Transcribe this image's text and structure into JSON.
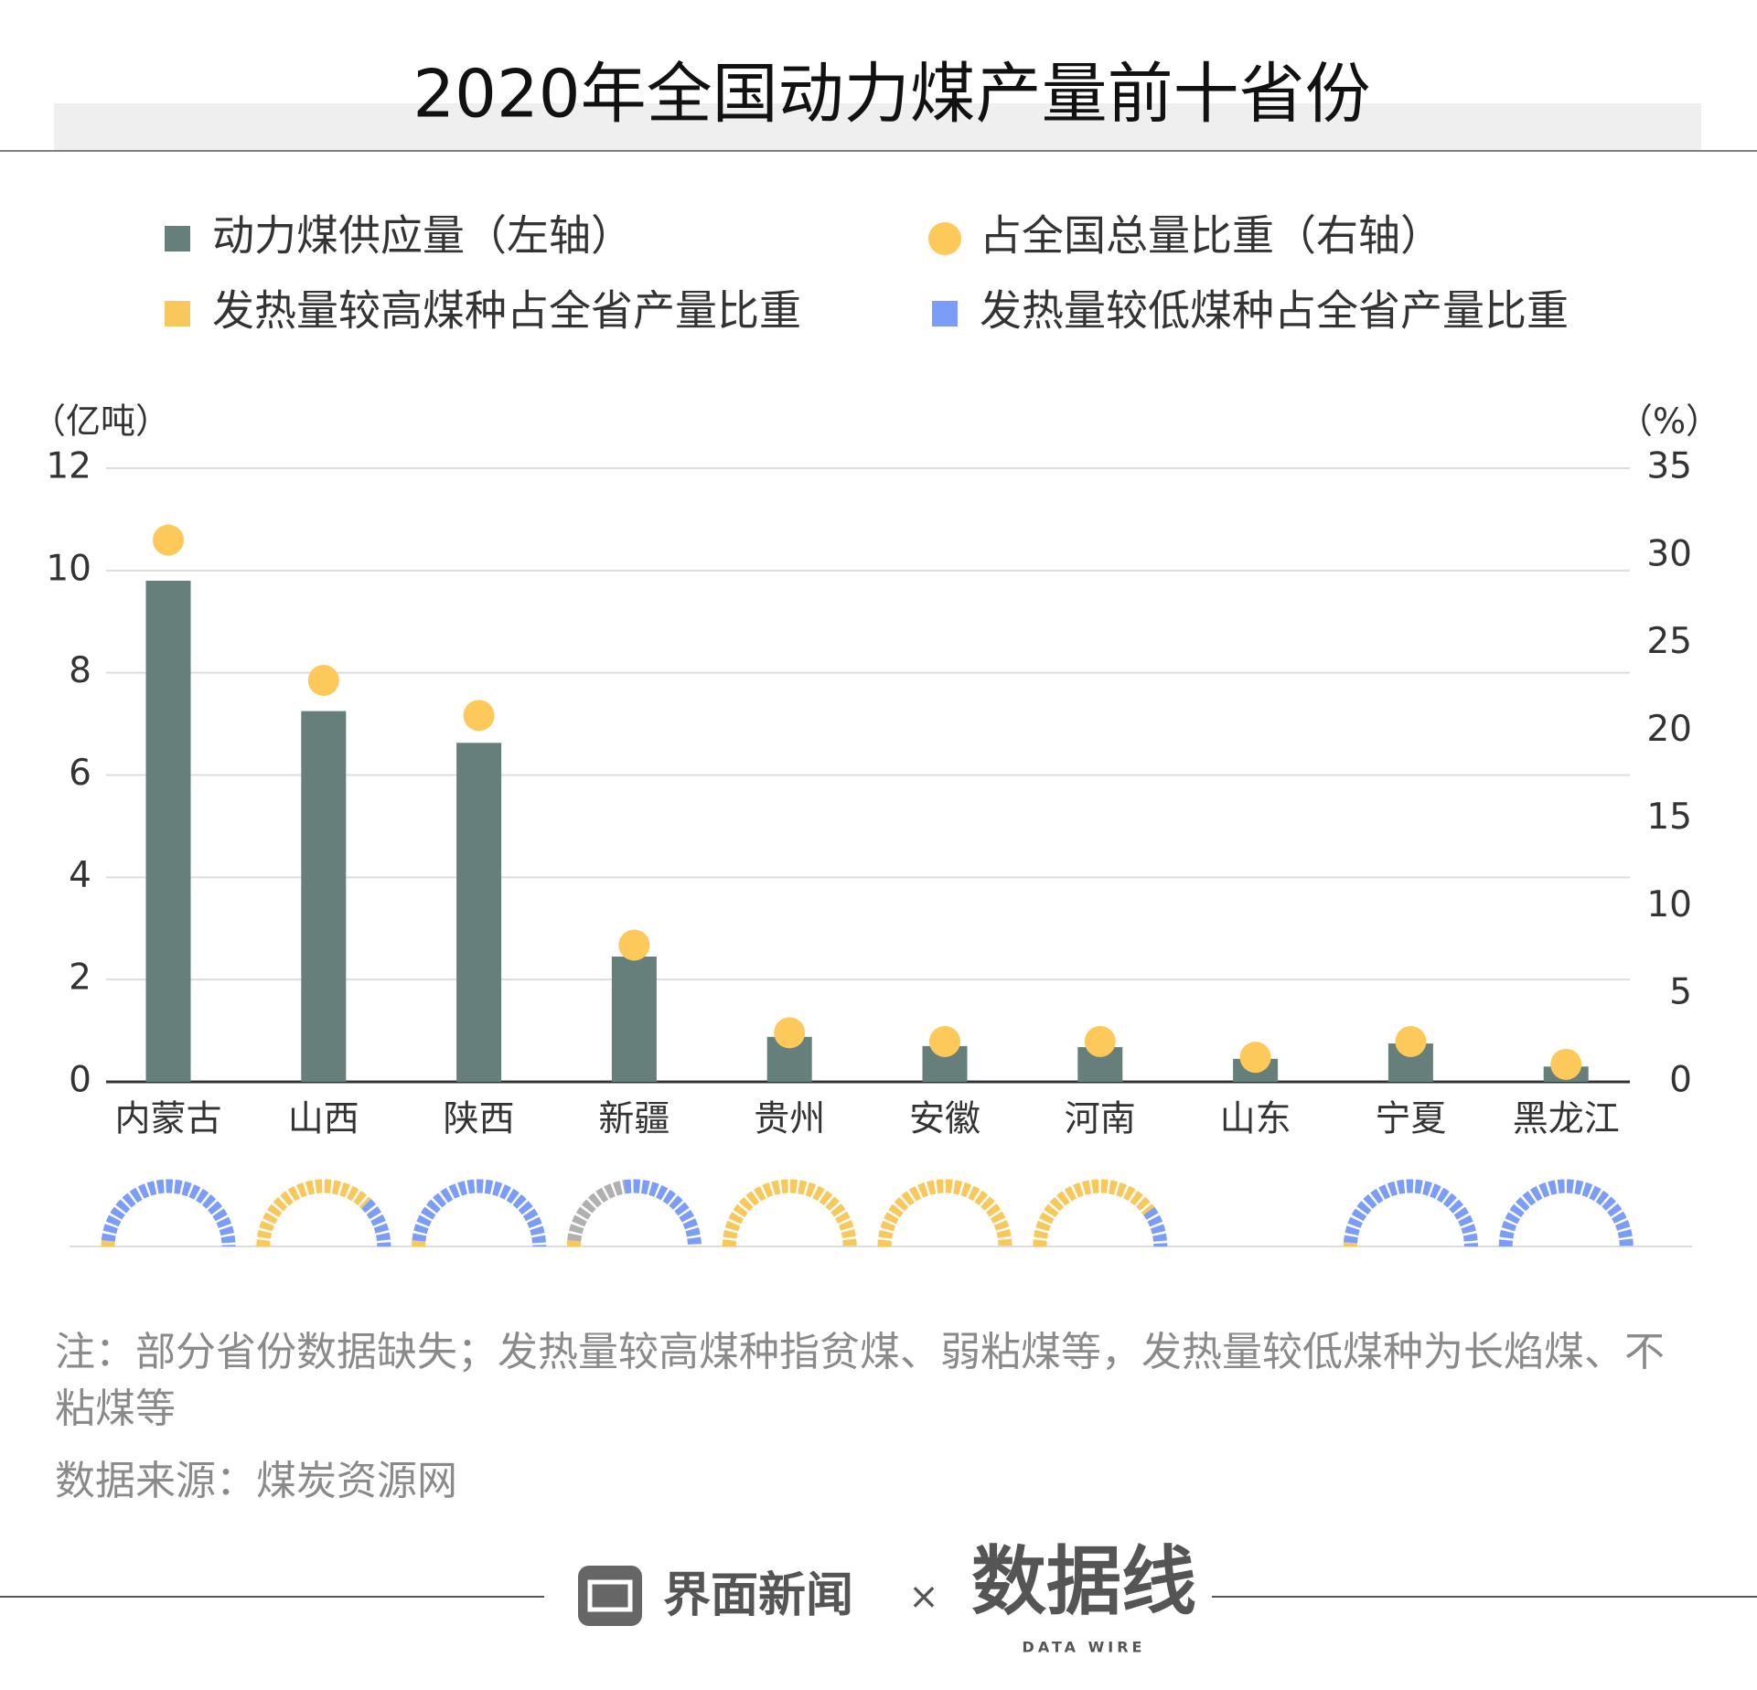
{
  "chart_data": [
    {
      "type": "bar",
      "title": "2020年全国动力煤产量前十省份",
      "categories": [
        "内蒙古",
        "山西",
        "陕西",
        "新疆",
        "贵州",
        "安徽",
        "河南",
        "山东",
        "宁夏",
        "黑龙江"
      ],
      "series": [
        {
          "name": "动力煤供应量（左轴）",
          "color": "#667f7a",
          "values": [
            9.8,
            7.25,
            6.63,
            2.45,
            0.88,
            0.7,
            0.68,
            0.45,
            0.75,
            0.3
          ]
        },
        {
          "name": "占全国总量比重（右轴）",
          "color": "#fcc95a",
          "type": "scatter",
          "axis": "y2",
          "values": [
            30.9,
            22.9,
            20.9,
            7.8,
            2.8,
            2.3,
            2.3,
            1.4,
            2.3,
            1.0
          ]
        }
      ],
      "ylabel": "（亿吨）",
      "y2label": "（%）",
      "ylim": [
        0,
        12
      ],
      "yticks": [
        0,
        2,
        4,
        6,
        8,
        10,
        12
      ],
      "y2lim": [
        0,
        35
      ],
      "y2ticks": [
        0,
        5,
        10,
        15,
        20,
        25,
        30,
        35
      ],
      "grid": true
    },
    {
      "type": "semi-donut",
      "categories": [
        "内蒙古",
        "山西",
        "陕西",
        "新疆",
        "贵州",
        "安徽",
        "河南",
        "山东",
        "宁夏",
        "黑龙江"
      ],
      "series": [
        {
          "name": "发热量较高煤种占全省产量比重",
          "color": "#f9c85c",
          "values": [
            3,
            75,
            3,
            3,
            100,
            100,
            80,
            null,
            2,
            0
          ]
        },
        {
          "color": "#b0b0b0",
          "values": [
            0,
            0,
            0,
            42,
            0,
            0,
            0,
            null,
            0,
            0
          ]
        },
        {
          "name": "发热量较低煤种占全省产量比重",
          "color": "#7b9cf7",
          "values": [
            97,
            25,
            97,
            55,
            0,
            0,
            20,
            null,
            98,
            100
          ]
        }
      ]
    }
  ],
  "note": "注：部分省份数据缺失；发热量较高煤种指贫煤、弱粘煤等，发热量较低煤种为长焰煤、不粘煤等",
  "source": "数据来源：煤炭资源网",
  "footer": {
    "brand": "界面新闻",
    "times": "×",
    "partner": "数据线",
    "partner_en": "DATA WIRE"
  }
}
